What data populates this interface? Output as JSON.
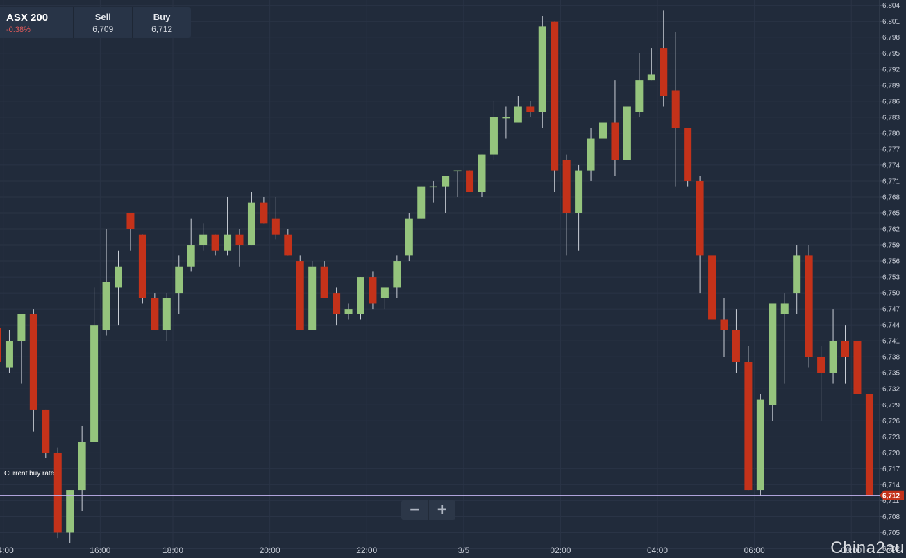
{
  "instrument": {
    "name": "ASX 200",
    "change": "-0.38%",
    "change_color": "#e05a5a"
  },
  "quote": {
    "sell_label": "Sell",
    "sell_value": "6,709",
    "buy_label": "Buy",
    "buy_value": "6,712"
  },
  "current_buy": {
    "label": "Current buy rate",
    "value": 6712,
    "value_label": "6,712",
    "line_color": "#c3b4f0",
    "badge_color": "#c4321a"
  },
  "zoom": {
    "minus": "−",
    "plus": "+"
  },
  "watermark": "China2au",
  "colors": {
    "up": "#95c47d",
    "down": "#c4321a",
    "grid": "#2a3446",
    "text": "#c9ced8",
    "background": "#212b3b"
  },
  "chart_data": {
    "type": "candlestick",
    "ylim": [
      6700.5,
      6805
    ],
    "y_ticks": [
      6702,
      6705,
      6708,
      6711,
      6714,
      6717,
      6720,
      6723,
      6726,
      6729,
      6732,
      6735,
      6738,
      6741,
      6744,
      6747,
      6750,
      6753,
      6756,
      6759,
      6762,
      6765,
      6768,
      6771,
      6774,
      6777,
      6780,
      6783,
      6786,
      6789,
      6792,
      6795,
      6798,
      6801,
      6804
    ],
    "x_labels": [
      {
        "label": "14:00",
        "at": 0.5
      },
      {
        "label": "16:00",
        "at": 8.5
      },
      {
        "label": "18:00",
        "at": 14.5
      },
      {
        "label": "20:00",
        "at": 22.5
      },
      {
        "label": "22:00",
        "at": 30.5
      },
      {
        "label": "3/5",
        "at": 38.5
      },
      {
        "label": "02:00",
        "at": 46.5
      },
      {
        "label": "04:00",
        "at": 54.5
      },
      {
        "label": "06:00",
        "at": 62.5
      },
      {
        "label": "08:00",
        "at": 70.5
      }
    ],
    "candles": [
      {
        "o": 6743.5,
        "h": 6744,
        "l": 6737,
        "c": 6737
      },
      {
        "o": 6736,
        "h": 6743,
        "l": 6735,
        "c": 6741
      },
      {
        "o": 6741,
        "h": 6746,
        "l": 6733,
        "c": 6746
      },
      {
        "o": 6746,
        "h": 6747,
        "l": 6724,
        "c": 6728
      },
      {
        "o": 6728,
        "h": 6728,
        "l": 6719,
        "c": 6720
      },
      {
        "o": 6720,
        "h": 6721,
        "l": 6704,
        "c": 6705
      },
      {
        "o": 6705,
        "h": 6713,
        "l": 6703,
        "c": 6713
      },
      {
        "o": 6713,
        "h": 6725,
        "l": 6709,
        "c": 6722
      },
      {
        "o": 6722,
        "h": 6751,
        "l": 6722,
        "c": 6744
      },
      {
        "o": 6743,
        "h": 6762,
        "l": 6742,
        "c": 6752
      },
      {
        "o": 6751,
        "h": 6758,
        "l": 6744,
        "c": 6755
      },
      {
        "o": 6765,
        "h": 6765,
        "l": 6758,
        "c": 6762
      },
      {
        "o": 6761,
        "h": 6761,
        "l": 6748,
        "c": 6749
      },
      {
        "o": 6749,
        "h": 6750,
        "l": 6743,
        "c": 6743
      },
      {
        "o": 6743,
        "h": 6750,
        "l": 6741,
        "c": 6749
      },
      {
        "o": 6750,
        "h": 6757,
        "l": 6746,
        "c": 6755
      },
      {
        "o": 6755,
        "h": 6764,
        "l": 6754,
        "c": 6759
      },
      {
        "o": 6759,
        "h": 6763,
        "l": 6758,
        "c": 6761
      },
      {
        "o": 6761,
        "h": 6761,
        "l": 6757,
        "c": 6758
      },
      {
        "o": 6758,
        "h": 6768,
        "l": 6757,
        "c": 6761
      },
      {
        "o": 6761,
        "h": 6762,
        "l": 6755,
        "c": 6759
      },
      {
        "o": 6759,
        "h": 6769,
        "l": 6759,
        "c": 6767
      },
      {
        "o": 6767,
        "h": 6768,
        "l": 6763,
        "c": 6763
      },
      {
        "o": 6764,
        "h": 6768,
        "l": 6760,
        "c": 6761
      },
      {
        "o": 6761,
        "h": 6762,
        "l": 6757,
        "c": 6757
      },
      {
        "o": 6756,
        "h": 6757,
        "l": 6743,
        "c": 6743
      },
      {
        "o": 6743,
        "h": 6756,
        "l": 6743,
        "c": 6755
      },
      {
        "o": 6755,
        "h": 6756,
        "l": 6749,
        "c": 6749
      },
      {
        "o": 6750,
        "h": 6751,
        "l": 6744,
        "c": 6746
      },
      {
        "o": 6746,
        "h": 6748,
        "l": 6745,
        "c": 6747
      },
      {
        "o": 6746,
        "h": 6753,
        "l": 6745,
        "c": 6753
      },
      {
        "o": 6753,
        "h": 6754,
        "l": 6747,
        "c": 6748
      },
      {
        "o": 6749,
        "h": 6751,
        "l": 6747,
        "c": 6751
      },
      {
        "o": 6751,
        "h": 6757,
        "l": 6749,
        "c": 6756
      },
      {
        "o": 6757,
        "h": 6765,
        "l": 6756,
        "c": 6764
      },
      {
        "o": 6764,
        "h": 6770,
        "l": 6764,
        "c": 6770
      },
      {
        "o": 6770,
        "h": 6771,
        "l": 6767,
        "c": 6770
      },
      {
        "o": 6770,
        "h": 6772,
        "l": 6765,
        "c": 6772
      },
      {
        "o": 6773,
        "h": 6773,
        "l": 6768,
        "c": 6773
      },
      {
        "o": 6773,
        "h": 6773,
        "l": 6769,
        "c": 6769
      },
      {
        "o": 6769,
        "h": 6776,
        "l": 6768,
        "c": 6776
      },
      {
        "o": 6776,
        "h": 6786,
        "l": 6775,
        "c": 6783
      },
      {
        "o": 6783,
        "h": 6785,
        "l": 6779,
        "c": 6783
      },
      {
        "o": 6782,
        "h": 6787,
        "l": 6782,
        "c": 6785
      },
      {
        "o": 6785,
        "h": 6786,
        "l": 6783,
        "c": 6784
      },
      {
        "o": 6784,
        "h": 6802,
        "l": 6781,
        "c": 6800
      },
      {
        "o": 6801,
        "h": 6801,
        "l": 6769,
        "c": 6773
      },
      {
        "o": 6775,
        "h": 6776,
        "l": 6757,
        "c": 6765
      },
      {
        "o": 6765,
        "h": 6774,
        "l": 6758,
        "c": 6773
      },
      {
        "o": 6773,
        "h": 6781,
        "l": 6771,
        "c": 6779
      },
      {
        "o": 6779,
        "h": 6784,
        "l": 6771,
        "c": 6782
      },
      {
        "o": 6782,
        "h": 6790,
        "l": 6772,
        "c": 6775
      },
      {
        "o": 6775,
        "h": 6785,
        "l": 6775,
        "c": 6785
      },
      {
        "o": 6784,
        "h": 6795,
        "l": 6783,
        "c": 6790
      },
      {
        "o": 6790,
        "h": 6796,
        "l": 6790,
        "c": 6791
      },
      {
        "o": 6796,
        "h": 6803,
        "l": 6785,
        "c": 6787
      },
      {
        "o": 6788,
        "h": 6799,
        "l": 6770,
        "c": 6781
      },
      {
        "o": 6781,
        "h": 6781,
        "l": 6770,
        "c": 6771
      },
      {
        "o": 6771,
        "h": 6772,
        "l": 6750,
        "c": 6757
      },
      {
        "o": 6757,
        "h": 6757,
        "l": 6745,
        "c": 6745
      },
      {
        "o": 6745,
        "h": 6749,
        "l": 6738,
        "c": 6743
      },
      {
        "o": 6743,
        "h": 6747,
        "l": 6735,
        "c": 6737
      },
      {
        "o": 6737,
        "h": 6740,
        "l": 6713,
        "c": 6713
      },
      {
        "o": 6713,
        "h": 6731,
        "l": 6712,
        "c": 6730
      },
      {
        "o": 6729,
        "h": 6748,
        "l": 6726,
        "c": 6748
      },
      {
        "o": 6746,
        "h": 6750,
        "l": 6733,
        "c": 6748
      },
      {
        "o": 6750,
        "h": 6759,
        "l": 6746,
        "c": 6757
      },
      {
        "o": 6757,
        "h": 6759,
        "l": 6736,
        "c": 6738
      },
      {
        "o": 6738,
        "h": 6740,
        "l": 6726,
        "c": 6735
      },
      {
        "o": 6735,
        "h": 6747,
        "l": 6733,
        "c": 6741
      },
      {
        "o": 6741,
        "h": 6744,
        "l": 6733,
        "c": 6738
      },
      {
        "o": 6741,
        "h": 6741,
        "l": 6731,
        "c": 6731
      },
      {
        "o": 6731,
        "h": 6731,
        "l": 6712,
        "c": 6712
      }
    ]
  }
}
